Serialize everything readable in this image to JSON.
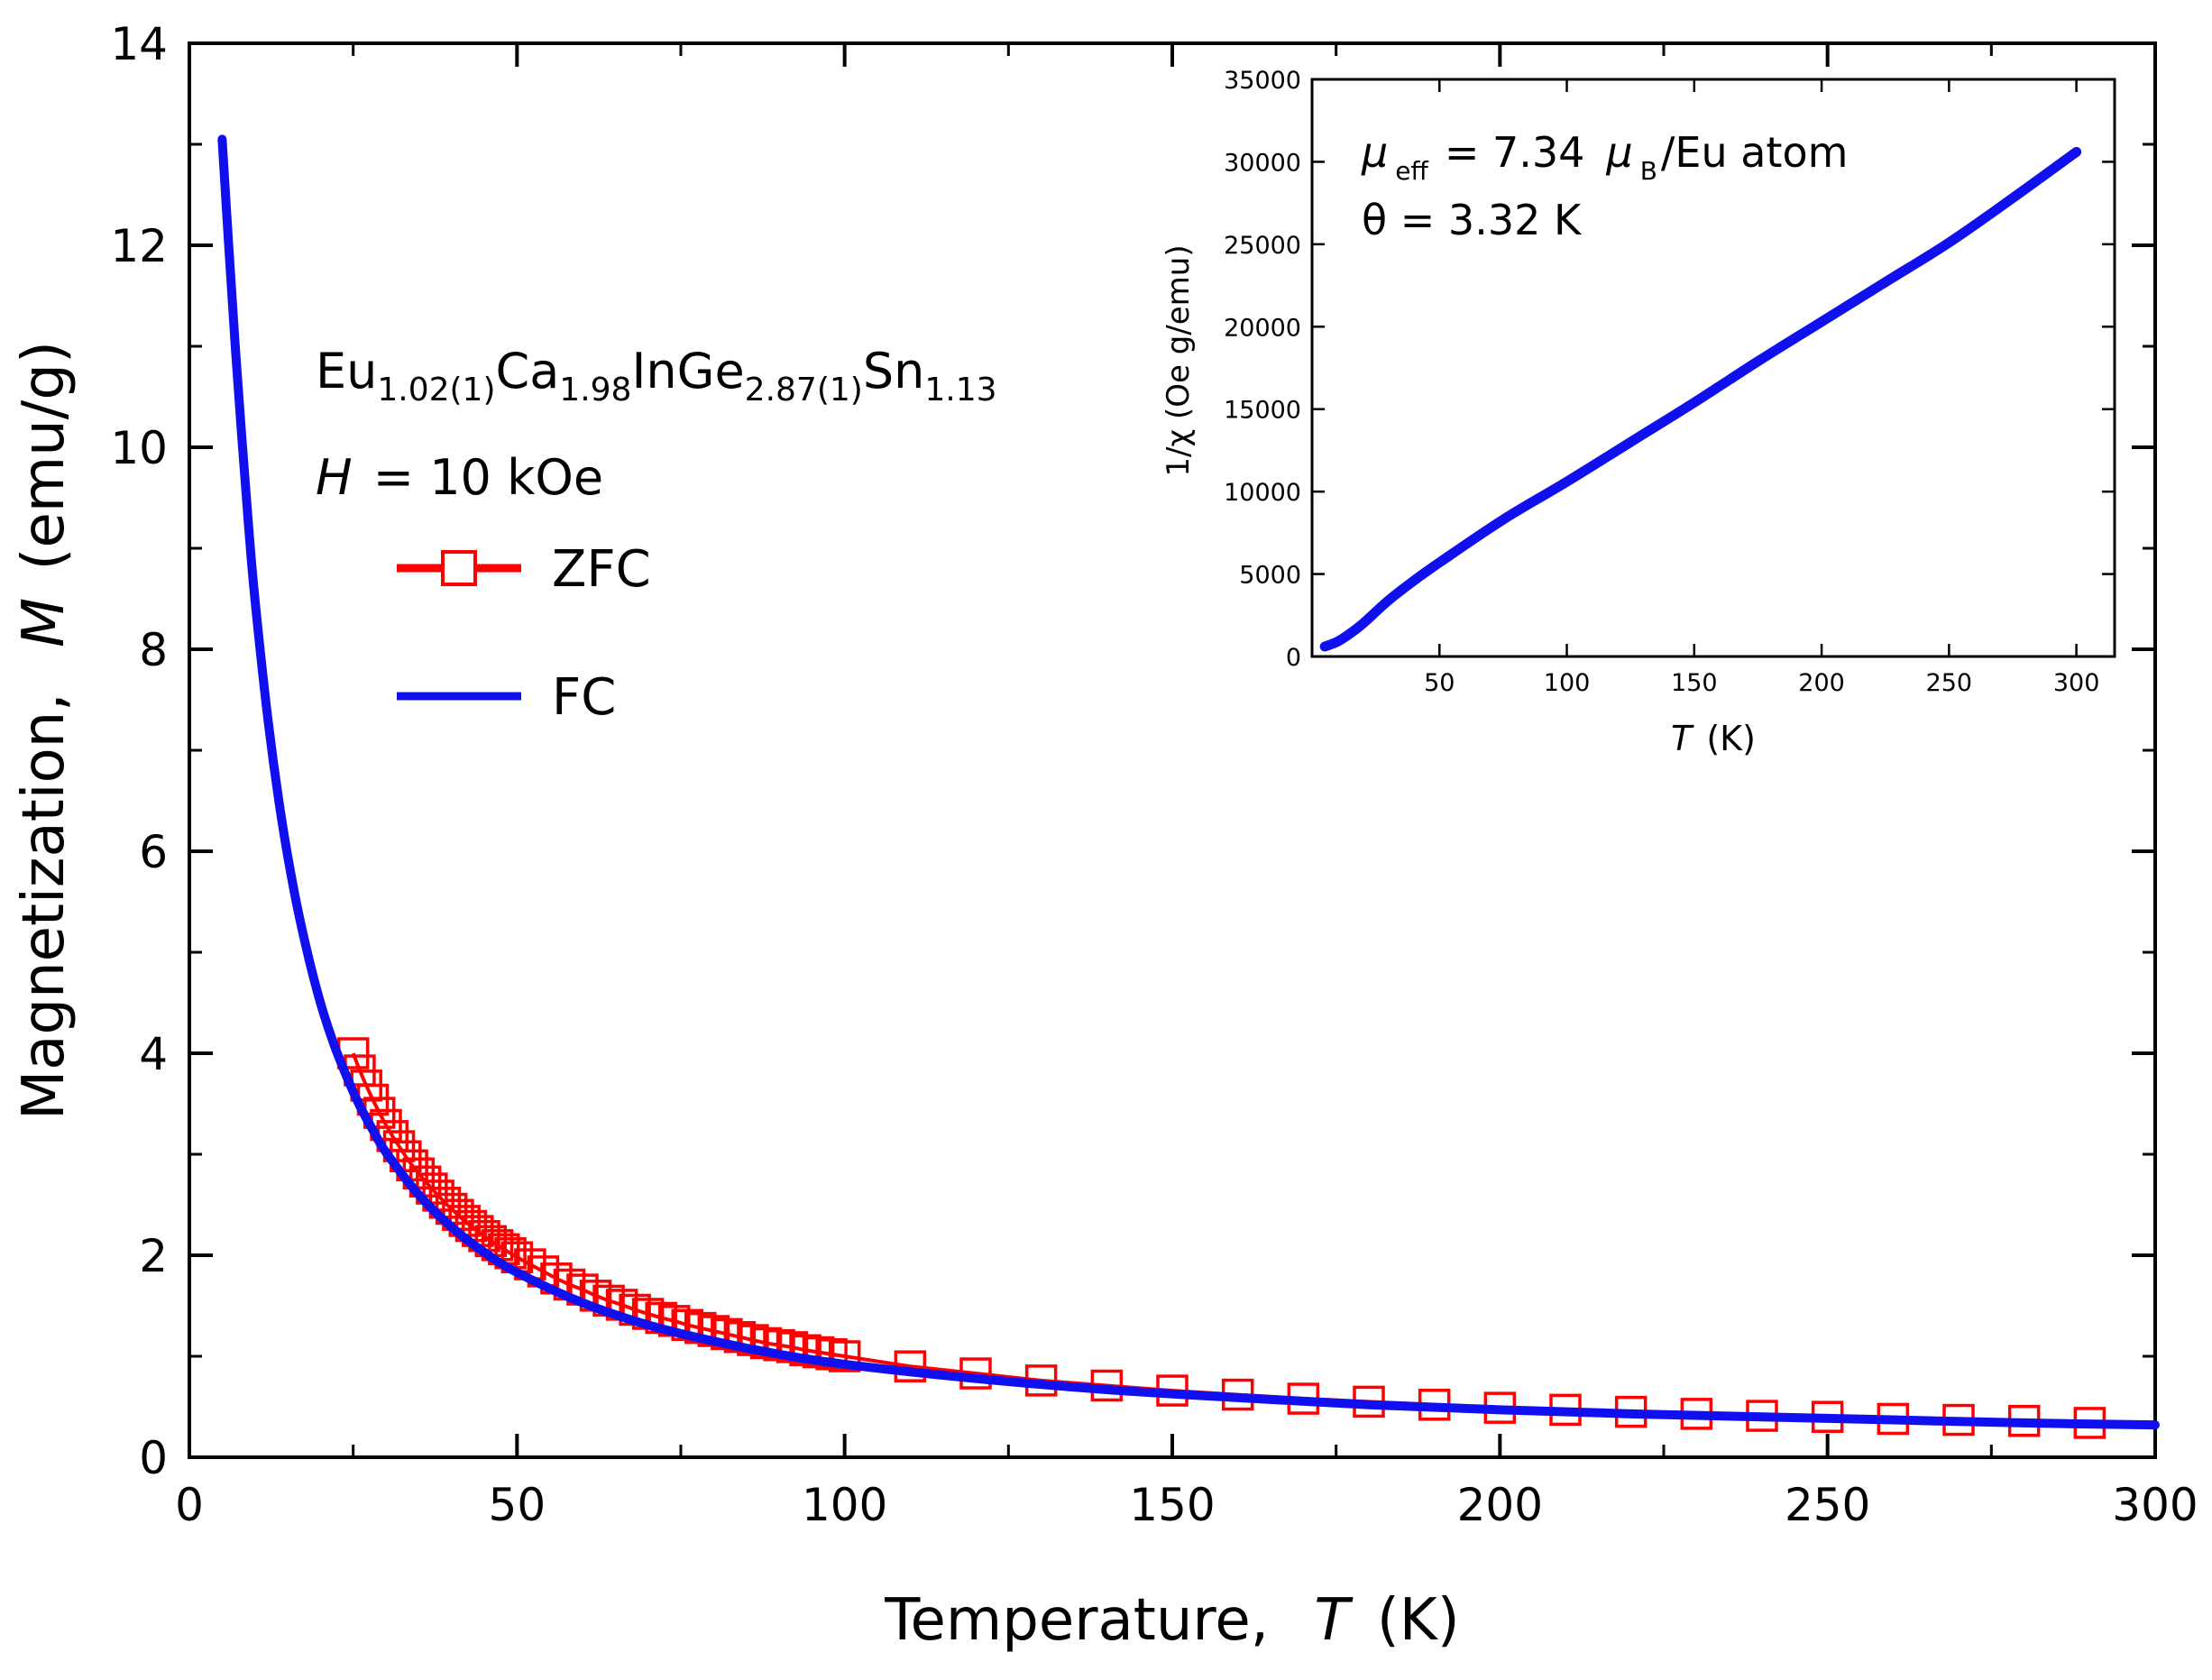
{
  "colors": {
    "zfc": "#ff0000",
    "fc": "#1010ee",
    "axis": "#000000",
    "background": "#ffffff"
  },
  "sample": {
    "parts": [
      {
        "base": "Eu",
        "sub": "1.02(1)"
      },
      {
        "base": "Ca",
        "sub": "1.98"
      },
      {
        "base": "InGe",
        "sub": "2.87(1)"
      },
      {
        "base": "Sn",
        "sub": "1.13"
      }
    ]
  },
  "field": {
    "symbol": "H",
    "text": "= 10 kOe"
  },
  "legend": {
    "zfc": "ZFC",
    "fc": "FC"
  },
  "chart_data": [
    {
      "id": "main",
      "type": "scatter",
      "title": "",
      "xlabel": {
        "text": "Temperature,",
        "symbol": "T",
        "unit": "(K)"
      },
      "ylabel": {
        "text": "Magnetization,",
        "symbol": "M",
        "unit": "(emu/g)"
      },
      "xlim": [
        0,
        300
      ],
      "ylim": [
        0,
        14
      ],
      "xticks": [
        0,
        50,
        100,
        150,
        200,
        250,
        300
      ],
      "yticks": [
        0,
        2,
        4,
        6,
        8,
        10,
        12,
        14
      ],
      "grid": false,
      "legend_position": "upper-left",
      "series": [
        {
          "name": "ZFC",
          "style": "open-square-markers",
          "x": [
            25,
            26,
            27,
            28,
            29,
            30,
            31,
            32,
            33,
            34,
            35,
            36,
            37,
            38,
            39,
            40,
            41,
            42,
            43,
            44,
            45,
            46,
            47,
            48,
            49,
            50,
            52,
            54,
            56,
            58,
            60,
            62,
            64,
            66,
            68,
            70,
            72,
            74,
            76,
            78,
            80,
            82,
            84,
            86,
            88,
            90,
            92,
            94,
            96,
            98,
            100,
            110,
            120,
            130,
            140,
            150,
            160,
            170,
            180,
            190,
            200,
            210,
            220,
            230,
            240,
            250,
            260,
            270,
            280,
            290
          ],
          "y": [
            4.0,
            3.83,
            3.68,
            3.54,
            3.41,
            3.29,
            3.18,
            3.08,
            2.98,
            2.89,
            2.81,
            2.73,
            2.66,
            2.59,
            2.52,
            2.46,
            2.4,
            2.34,
            2.29,
            2.24,
            2.19,
            2.14,
            2.1,
            2.06,
            2.02,
            1.98,
            1.91,
            1.84,
            1.77,
            1.71,
            1.66,
            1.6,
            1.55,
            1.51,
            1.46,
            1.42,
            1.38,
            1.35,
            1.31,
            1.28,
            1.25,
            1.22,
            1.19,
            1.16,
            1.13,
            1.11,
            1.09,
            1.06,
            1.04,
            1.02,
            1.0,
            0.9,
            0.83,
            0.76,
            0.71,
            0.66,
            0.62,
            0.58,
            0.55,
            0.52,
            0.49,
            0.47,
            0.45,
            0.43,
            0.41,
            0.4,
            0.38,
            0.37,
            0.36,
            0.34
          ]
        },
        {
          "name": "FC",
          "style": "solid-line",
          "x": [
            5,
            6,
            7,
            8,
            9,
            10,
            12,
            14,
            16,
            18,
            20,
            22,
            24,
            26,
            28,
            30,
            35,
            40,
            45,
            50,
            60,
            70,
            80,
            90,
            100,
            120,
            140,
            160,
            180,
            200,
            220,
            240,
            260,
            280,
            300
          ],
          "y": [
            13.05,
            12.0,
            11.0,
            10.1,
            9.25,
            8.5,
            7.3,
            6.35,
            5.6,
            5.0,
            4.5,
            4.1,
            3.77,
            3.48,
            3.24,
            3.02,
            2.6,
            2.28,
            2.03,
            1.83,
            1.53,
            1.31,
            1.15,
            1.02,
            0.92,
            0.78,
            0.67,
            0.59,
            0.52,
            0.47,
            0.43,
            0.4,
            0.37,
            0.34,
            0.32
          ]
        }
      ]
    },
    {
      "id": "inset",
      "type": "line",
      "title": "",
      "xlabel": {
        "symbol": "T",
        "unit": "(K)"
      },
      "ylabel": {
        "text": "1/χ (Oe g/emu)"
      },
      "xlim": [
        0,
        315
      ],
      "ylim": [
        0,
        35000
      ],
      "xticks": [
        50,
        100,
        150,
        200,
        250,
        300
      ],
      "yticks": [
        0,
        5000,
        10000,
        15000,
        20000,
        25000,
        30000,
        35000
      ],
      "grid": false,
      "annotations": [
        {
          "symbol": "μ",
          "sub": "eff",
          "text": "= 7.34",
          "symbol2": "μ",
          "sub2": "B",
          "text2": "/Eu atom"
        },
        {
          "text": "θ = 3.32 K"
        }
      ],
      "series": [
        {
          "name": "1/chi",
          "x": [
            5,
            10,
            15,
            20,
            30,
            40,
            50,
            75,
            100,
            125,
            150,
            175,
            200,
            225,
            250,
            275,
            300
          ],
          "y": [
            600,
            900,
            1400,
            2000,
            3400,
            4600,
            5700,
            8300,
            10600,
            13000,
            15400,
            17900,
            20300,
            22700,
            25100,
            27800,
            30600
          ]
        }
      ]
    }
  ]
}
